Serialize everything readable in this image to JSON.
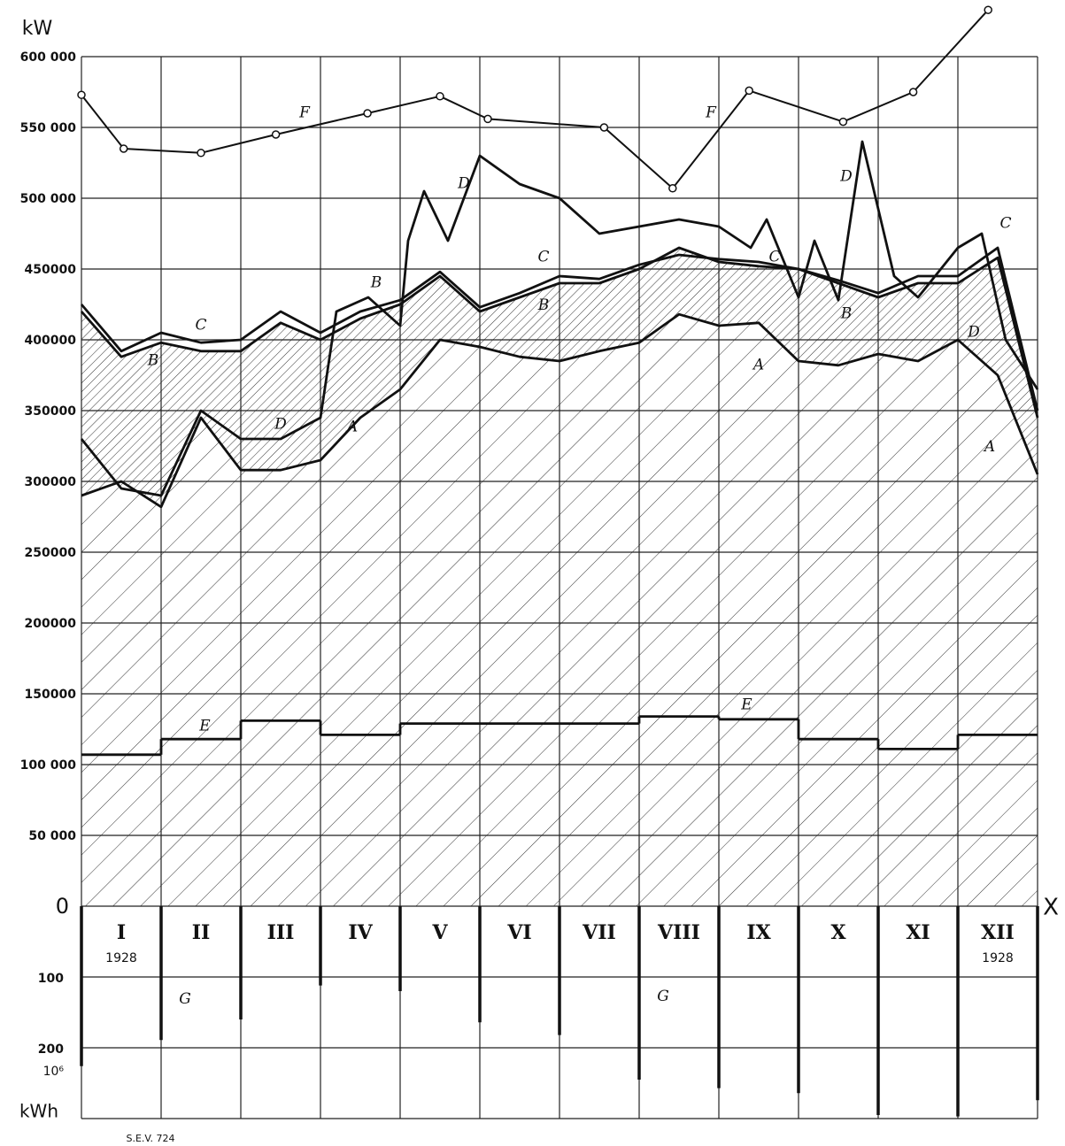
{
  "chart_data": {
    "type": "line",
    "ylabel": "kW",
    "xlabel": "X",
    "footer": "S.E.V. 724",
    "xlim": [
      0,
      12
    ],
    "xticks": [
      0,
      1,
      2,
      3,
      4,
      5,
      6,
      7,
      8,
      9,
      10,
      11,
      12
    ],
    "ylim": [
      0,
      600000
    ],
    "yticks": [
      0,
      {
        "value": 50000,
        "label": "50 000"
      },
      {
        "value": 100000,
        "label": "100 000"
      },
      {
        "value": 150000,
        "label": "150000"
      },
      {
        "value": 200000,
        "label": "200000"
      },
      {
        "value": 250000,
        "label": "250000"
      },
      {
        "value": 300000,
        "label": "300000"
      },
      {
        "value": 350000,
        "label": "350000"
      },
      {
        "value": 400000,
        "label": "400000"
      },
      {
        "value": 450000,
        "label": "450000"
      },
      {
        "value": 500000,
        "label": "500 000"
      },
      {
        "value": 550000,
        "label": "550 000"
      },
      {
        "value": 600000,
        "label": "600 000"
      }
    ],
    "grid": true,
    "months": [
      "I",
      "II",
      "III",
      "IV",
      "V",
      "VI",
      "VII",
      "VIII",
      "IX",
      "X",
      "XI",
      "XII"
    ],
    "year_labels": [
      {
        "month": 0,
        "text": "1928"
      },
      {
        "month": 11,
        "text": "1928"
      }
    ],
    "energy_axis": {
      "label": "kWh",
      "unit": "10⁶",
      "lim": [
        0,
        300
      ],
      "ticks": [
        100,
        200
      ]
    },
    "series": [
      {
        "name": "A",
        "style": "line",
        "color": "#111",
        "x": [
          0,
          0.5,
          1,
          1.5,
          2,
          2.5,
          3,
          3.5,
          4,
          4.5,
          5,
          5.5,
          6,
          6.5,
          7,
          7.5,
          8,
          8.5,
          9,
          9.5,
          10,
          10.5,
          11,
          11.5,
          12
        ],
        "values": [
          290000,
          300000,
          282000,
          345000,
          308000,
          308000,
          315000,
          345000,
          365000,
          400000,
          395000,
          388000,
          385000,
          392000,
          398000,
          418000,
          410000,
          412000,
          385000,
          382000,
          390000,
          385000,
          400000,
          375000,
          305000
        ],
        "label_at": [
          [
            3.4,
            338000
          ],
          [
            8.5,
            382000
          ],
          [
            11.4,
            324000
          ]
        ]
      },
      {
        "name": "B",
        "style": "line",
        "color": "#111",
        "x": [
          0,
          0.5,
          1,
          1.5,
          2,
          2.5,
          3,
          3.5,
          4,
          4.5,
          5,
          5.5,
          6,
          6.5,
          7,
          7.5,
          8,
          8.5,
          9,
          9.5,
          10,
          10.5,
          11,
          11.5,
          12
        ],
        "values": [
          420000,
          388000,
          398000,
          392000,
          392000,
          412000,
          400000,
          415000,
          425000,
          445000,
          420000,
          430000,
          440000,
          440000,
          450000,
          465000,
          455000,
          452000,
          450000,
          440000,
          430000,
          440000,
          440000,
          458000,
          345000
        ],
        "label_at": [
          [
            0.9,
            385000
          ],
          [
            3.7,
            440000
          ],
          [
            5.8,
            424000
          ],
          [
            9.6,
            418000
          ]
        ]
      },
      {
        "name": "C",
        "style": "line",
        "color": "#111",
        "x": [
          0,
          0.5,
          1,
          1.5,
          2,
          2.5,
          3,
          3.5,
          4,
          4.5,
          5,
          5.5,
          6,
          6.5,
          7,
          7.5,
          8,
          8.5,
          9,
          9.5,
          10,
          10.5,
          11,
          11.5,
          12
        ],
        "values": [
          425000,
          392000,
          405000,
          398000,
          400000,
          420000,
          405000,
          420000,
          428000,
          448000,
          423000,
          433000,
          445000,
          443000,
          453000,
          460000,
          457000,
          455000,
          450000,
          442000,
          433000,
          445000,
          445000,
          465000,
          350000
        ],
        "label_at": [
          [
            1.5,
            410000
          ],
          [
            5.8,
            458000
          ],
          [
            8.7,
            458000
          ],
          [
            11.6,
            482000
          ]
        ]
      },
      {
        "name": "D",
        "style": "line",
        "color": "#111",
        "x": [
          0,
          0.5,
          1,
          1.5,
          2,
          2.5,
          3,
          3.2,
          3.6,
          4,
          4.1,
          4.3,
          4.6,
          5,
          5.5,
          6,
          6.5,
          7,
          7.5,
          8,
          8.4,
          8.6,
          9,
          9.2,
          9.5,
          9.8,
          10.2,
          10.5,
          11,
          11.3,
          11.6,
          12
        ],
        "values": [
          330000,
          295000,
          290000,
          350000,
          330000,
          330000,
          345000,
          420000,
          430000,
          410000,
          470000,
          505000,
          470000,
          530000,
          510000,
          500000,
          475000,
          480000,
          485000,
          480000,
          465000,
          485000,
          430000,
          470000,
          428000,
          540000,
          445000,
          430000,
          465000,
          475000,
          400000,
          365000
        ],
        "label_at": [
          [
            4.8,
            510000
          ],
          [
            9.6,
            515000
          ],
          [
            2.5,
            340000
          ],
          [
            11.2,
            405000
          ]
        ]
      },
      {
        "name": "E",
        "style": "step",
        "color": "#111",
        "values": [
          107000,
          118000,
          131000,
          121000,
          129000,
          129000,
          129000,
          134000,
          132000,
          118000,
          111000,
          121000
        ],
        "label_at": [
          [
            1.55,
            127000
          ],
          [
            8.35,
            142000
          ]
        ]
      },
      {
        "name": "F",
        "style": "markers",
        "color": "#111",
        "x": [
          0,
          0.53,
          1.5,
          2.44,
          3.59,
          4.5,
          5.1,
          6.56,
          7.42,
          8.38,
          9.56,
          10.44,
          11.38
        ],
        "values": [
          573000,
          535000,
          532000,
          545000,
          560000,
          572000,
          556000,
          550000,
          507000,
          576000,
          554000,
          575000,
          633000
        ],
        "label_at": [
          [
            2.8,
            560000
          ],
          [
            7.9,
            560000
          ]
        ]
      },
      {
        "name": "G",
        "style": "bars",
        "axis": "energy",
        "color": "#111",
        "x": [
          0,
          1,
          2,
          3,
          4,
          5,
          6,
          7,
          8,
          9,
          10,
          11,
          12
        ],
        "values": [
          226,
          189,
          160,
          112,
          120,
          164,
          182,
          245,
          257,
          264,
          295,
          297,
          274
        ],
        "label_at": [
          [
            1.3,
            132
          ],
          [
            7.3,
            128
          ]
        ]
      }
    ]
  }
}
